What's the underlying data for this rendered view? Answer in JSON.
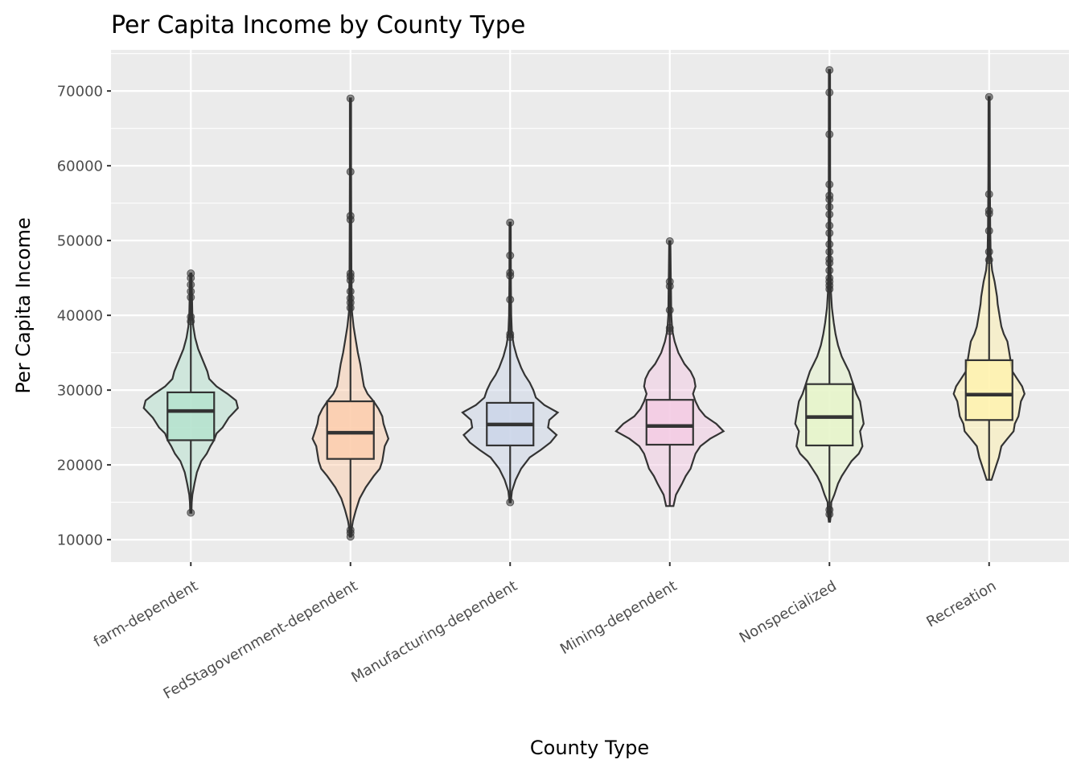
{
  "chart_data": {
    "type": "violin",
    "title": "Per Capita Income by County Type",
    "xlabel": "County Type",
    "ylabel": "Per Capita Income",
    "ylim": [
      7000,
      75500
    ],
    "yticks": [
      10000,
      20000,
      30000,
      40000,
      50000,
      60000,
      70000
    ],
    "grid": true,
    "legend": "none",
    "categories": [
      "farm-dependent",
      "FedStagovernment-dependent",
      "Manufacturing-dependent",
      "Mining-dependent",
      "Nonspecialized",
      "Recreation"
    ],
    "groups": [
      {
        "category": "farm-dependent",
        "color": "#b3e2cd",
        "min": 13600,
        "q1": 23300,
        "median": 27200,
        "q3": 29700,
        "max": 45600,
        "whisker_low": 13600,
        "whisker_high": 45600,
        "outliers": [
          13600,
          39200,
          39800,
          42400,
          43200,
          44100,
          45000,
          45600
        ],
        "density": [
          [
            13600,
            1
          ],
          [
            15000,
            1.5
          ],
          [
            16000,
            2.5
          ],
          [
            17500,
            6
          ],
          [
            19000,
            10
          ],
          [
            20500,
            17
          ],
          [
            21500,
            26
          ],
          [
            22500,
            32
          ],
          [
            23300,
            38
          ],
          [
            24200,
            42
          ],
          [
            25000,
            52
          ],
          [
            26300,
            62
          ],
          [
            27600,
            77
          ],
          [
            28600,
            74
          ],
          [
            29500,
            60
          ],
          [
            30500,
            42
          ],
          [
            31500,
            30
          ],
          [
            32500,
            27
          ],
          [
            33500,
            22
          ],
          [
            34500,
            17
          ],
          [
            35500,
            12
          ],
          [
            37000,
            7
          ],
          [
            38500,
            4
          ],
          [
            40000,
            2.5
          ],
          [
            42000,
            2
          ],
          [
            44000,
            1.5
          ],
          [
            45600,
            1
          ]
        ]
      },
      {
        "category": "FedStagovernment-dependent",
        "color": "#fdcdac",
        "min": 10400,
        "q1": 20800,
        "median": 24300,
        "q3": 28500,
        "max": 69000,
        "whisker_low": 10400,
        "whisker_high": 69000,
        "outliers": [
          10400,
          10900,
          11300,
          41000,
          41700,
          42300,
          43200,
          44700,
          45200,
          45600,
          52800,
          53300,
          59200,
          69000
        ],
        "density": [
          [
            10400,
            1
          ],
          [
            11500,
            2
          ],
          [
            12500,
            4
          ],
          [
            14000,
            9
          ],
          [
            15500,
            15
          ],
          [
            17000,
            25
          ],
          [
            18500,
            38
          ],
          [
            19500,
            48
          ],
          [
            20500,
            52
          ],
          [
            21500,
            54
          ],
          [
            22500,
            56
          ],
          [
            23500,
            62
          ],
          [
            24500,
            58
          ],
          [
            25500,
            54
          ],
          [
            26500,
            52
          ],
          [
            27500,
            46
          ],
          [
            28500,
            38
          ],
          [
            29500,
            28
          ],
          [
            30500,
            22
          ],
          [
            31500,
            20
          ],
          [
            32500,
            18
          ],
          [
            33500,
            16
          ],
          [
            35000,
            12
          ],
          [
            36500,
            9
          ],
          [
            38500,
            5
          ],
          [
            40500,
            2.5
          ],
          [
            43000,
            2
          ],
          [
            46000,
            1.5
          ],
          [
            52000,
            1.2
          ],
          [
            60000,
            1
          ],
          [
            69000,
            1
          ]
        ]
      },
      {
        "category": "Manufacturing-dependent",
        "color": "#cbd5e8",
        "min": 15000,
        "q1": 22600,
        "median": 25400,
        "q3": 28300,
        "max": 52400,
        "whisker_low": 15000,
        "whisker_high": 52400,
        "outliers": [
          15000,
          37100,
          37500,
          42100,
          45300,
          45700,
          48000,
          52400
        ],
        "density": [
          [
            15000,
            1
          ],
          [
            16500,
            3
          ],
          [
            18000,
            9
          ],
          [
            19500,
            18
          ],
          [
            21000,
            32
          ],
          [
            22000,
            50
          ],
          [
            23000,
            66
          ],
          [
            24000,
            76
          ],
          [
            25000,
            62
          ],
          [
            26000,
            64
          ],
          [
            27000,
            78
          ],
          [
            28000,
            56
          ],
          [
            29000,
            42
          ],
          [
            30000,
            38
          ],
          [
            31000,
            32
          ],
          [
            32000,
            24
          ],
          [
            33000,
            18
          ],
          [
            34500,
            11
          ],
          [
            36000,
            6
          ],
          [
            37500,
            3
          ],
          [
            40000,
            1.8
          ],
          [
            44000,
            1.3
          ],
          [
            48000,
            1.1
          ],
          [
            52400,
            1
          ]
        ]
      },
      {
        "category": "Mining-dependent",
        "color": "#f4cae4",
        "min": 14500,
        "q1": 22700,
        "median": 25200,
        "q3": 28700,
        "max": 49900,
        "whisker_low": 14500,
        "whisker_high": 49900,
        "outliers": [
          37900,
          38300,
          40700,
          43900,
          44500,
          49900
        ],
        "density": [
          [
            14500,
            6
          ],
          [
            16000,
            10
          ],
          [
            17500,
            20
          ],
          [
            18500,
            26
          ],
          [
            19500,
            34
          ],
          [
            20500,
            38
          ],
          [
            21500,
            42
          ],
          [
            22500,
            50
          ],
          [
            23500,
            66
          ],
          [
            24500,
            88
          ],
          [
            25500,
            76
          ],
          [
            26500,
            58
          ],
          [
            27500,
            48
          ],
          [
            28500,
            42
          ],
          [
            29500,
            38
          ],
          [
            30500,
            42
          ],
          [
            31500,
            40
          ],
          [
            32500,
            34
          ],
          [
            33500,
            24
          ],
          [
            35000,
            14
          ],
          [
            36500,
            8
          ],
          [
            38000,
            4
          ],
          [
            40000,
            2.5
          ],
          [
            43000,
            2
          ],
          [
            46000,
            1.5
          ],
          [
            49900,
            1
          ]
        ]
      },
      {
        "category": "Nonspecialized",
        "color": "#e6f5c9",
        "min": 12400,
        "q1": 22600,
        "median": 26400,
        "q3": 30800,
        "max": 72800,
        "whisker_low": 12400,
        "whisker_high": 72800,
        "outliers": [
          13400,
          14000,
          43500,
          44000,
          44500,
          45000,
          46000,
          47000,
          47500,
          48500,
          49500,
          51000,
          52000,
          53500,
          54500,
          55500,
          56000,
          57500,
          64200,
          69800,
          72800
        ],
        "density": [
          [
            12400,
            1
          ],
          [
            13500,
            2.5
          ],
          [
            15000,
            3
          ],
          [
            16000,
            8
          ],
          [
            17500,
            14
          ],
          [
            18500,
            20
          ],
          [
            19500,
            28
          ],
          [
            20500,
            36
          ],
          [
            21500,
            48
          ],
          [
            22500,
            54
          ],
          [
            23500,
            52
          ],
          [
            24500,
            50
          ],
          [
            25500,
            56
          ],
          [
            26500,
            54
          ],
          [
            27500,
            52
          ],
          [
            28500,
            50
          ],
          [
            29500,
            44
          ],
          [
            30500,
            40
          ],
          [
            31500,
            36
          ],
          [
            32500,
            32
          ],
          [
            33500,
            26
          ],
          [
            34500,
            20
          ],
          [
            36000,
            14
          ],
          [
            37500,
            10
          ],
          [
            39000,
            7
          ],
          [
            41000,
            4
          ],
          [
            43000,
            2.5
          ],
          [
            46000,
            1.8
          ],
          [
            52000,
            1.3
          ],
          [
            60000,
            1.1
          ],
          [
            72800,
            1
          ]
        ]
      },
      {
        "category": "Recreation",
        "color": "#fff2ae",
        "min": 18000,
        "q1": 26000,
        "median": 29400,
        "q3": 34000,
        "max": 69200,
        "whisker_low": 18000,
        "whisker_high": 69200,
        "outliers": [
          47400,
          48500,
          51300,
          53600,
          54000,
          56200,
          69200
        ],
        "density": [
          [
            18000,
            4
          ],
          [
            19500,
            10
          ],
          [
            21000,
            16
          ],
          [
            22500,
            20
          ],
          [
            23500,
            30
          ],
          [
            24500,
            40
          ],
          [
            25500,
            42
          ],
          [
            26500,
            48
          ],
          [
            27500,
            50
          ],
          [
            28500,
            52
          ],
          [
            29500,
            58
          ],
          [
            30500,
            54
          ],
          [
            31500,
            46
          ],
          [
            32500,
            38
          ],
          [
            33500,
            36
          ],
          [
            34500,
            34
          ],
          [
            35500,
            32
          ],
          [
            36500,
            30
          ],
          [
            37500,
            24
          ],
          [
            38500,
            20
          ],
          [
            39500,
            18
          ],
          [
            40500,
            16
          ],
          [
            41500,
            14
          ],
          [
            42500,
            13
          ],
          [
            43500,
            11
          ],
          [
            44500,
            9
          ],
          [
            46000,
            5
          ],
          [
            48000,
            2.5
          ],
          [
            52000,
            1.8
          ],
          [
            58000,
            1.3
          ],
          [
            69200,
            1
          ]
        ]
      }
    ]
  }
}
